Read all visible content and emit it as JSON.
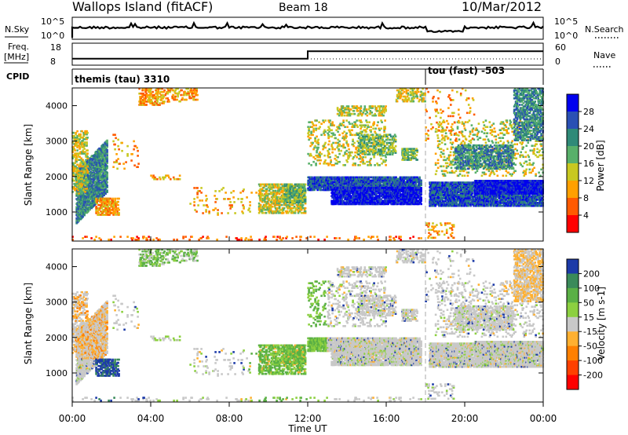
{
  "chart_data": [
    {
      "type": "line",
      "panel": "header",
      "title": "Wallops Island (fitACF)",
      "beam_label": "Beam 18",
      "date": "10/Mar/2012",
      "rows": {
        "noise": {
          "left_label": "N.Sky",
          "right_label": "N.Search",
          "left_ticks": [
            "10^5",
            "10^0"
          ],
          "right_ticks": [
            "10^5",
            "10^0"
          ]
        },
        "freq": {
          "left_label_line1": "Freq.",
          "left_label_line2": "[MHz]",
          "right_label": "Nave",
          "left_ticks": [
            "18",
            "8"
          ],
          "right_ticks": [
            "60",
            "0"
          ],
          "ylim": [
            8,
            18
          ],
          "x_hours": [
            0,
            12,
            12,
            24
          ],
          "values": [
            11,
            11,
            15,
            15
          ]
        },
        "cpid": {
          "left_label": "CPID",
          "segments": [
            {
              "start_hour": 0,
              "label": "themis (tau) 3310"
            },
            {
              "start_hour": 18,
              "label": "tou (fast) -503"
            }
          ]
        }
      }
    },
    {
      "type": "heatmap",
      "panel": "power",
      "ylabel": "Slant Range [km]",
      "ylim": [
        180,
        4500
      ],
      "yticks": [
        1000,
        2000,
        3000,
        4000
      ],
      "colorbar_label": "Power [dB]",
      "colorbar_ticks": [
        "28",
        "24",
        "20",
        "16",
        "12",
        "8",
        "4"
      ],
      "colors": [
        "#0000ee",
        "#2a50b4",
        "#2f8a78",
        "#58b06a",
        "#c8c820",
        "#ffa000",
        "#ff5a00",
        "#ff0000"
      ]
    },
    {
      "type": "heatmap",
      "panel": "velocity",
      "ylabel": "Slant Range [km]",
      "ylim": [
        180,
        4500
      ],
      "yticks": [
        1000,
        2000,
        3000,
        4000
      ],
      "xlabel": "Time UT",
      "xticks": [
        "00:00",
        "04:00",
        "08:00",
        "12:00",
        "16:00",
        "20:00",
        "00:00"
      ],
      "colorbar_label": "Velocity [m s-1]",
      "colorbar_ticks": [
        "200",
        "100",
        "50",
        "15",
        "-15",
        "-50",
        "-100",
        "-200"
      ],
      "colors": [
        "#1c3aa8",
        "#3a8a5a",
        "#5ab045",
        "#8cd040",
        "#c8c8c8",
        "#ffb030",
        "#ff8000",
        "#ff4000",
        "#ff0000"
      ]
    }
  ]
}
